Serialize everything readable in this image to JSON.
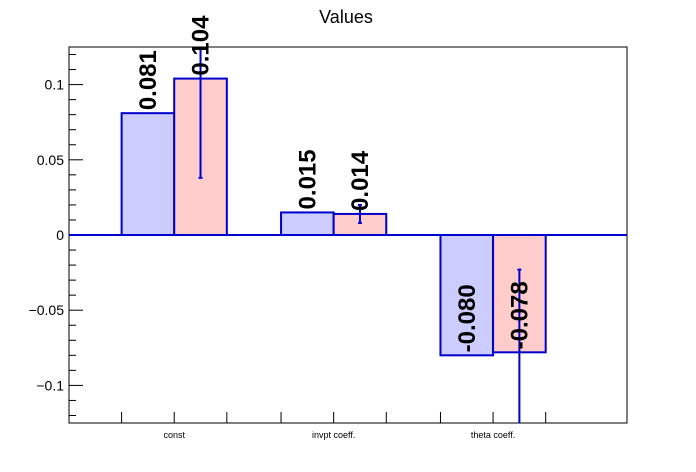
{
  "chart_data": {
    "type": "bar",
    "title": "Values",
    "categories": [
      "const",
      "invpt coeff.",
      "theta coeff."
    ],
    "series": [
      {
        "values": [
          0.081,
          0.015,
          -0.08
        ],
        "labels": [
          "0.081",
          "0.015",
          "-0.080"
        ],
        "fill_color": "#ccccff",
        "edge_color": "#0000cc"
      },
      {
        "values": [
          0.104,
          0.014,
          -0.078
        ],
        "labels": [
          "0.104",
          "0.014",
          "-0.078"
        ],
        "errors": [
          0.066,
          0.006,
          0.055
        ],
        "fill_color": "#ffcccc",
        "edge_color": "#0000cc"
      }
    ],
    "ylim": [
      -0.125,
      0.125
    ],
    "yticks": [
      -0.1,
      -0.05,
      0,
      0.05,
      0.1
    ],
    "ytick_labels": [
      "−0.1",
      "−0.05",
      "0",
      "0.05",
      "0.1"
    ],
    "grid": false,
    "legend": false
  }
}
